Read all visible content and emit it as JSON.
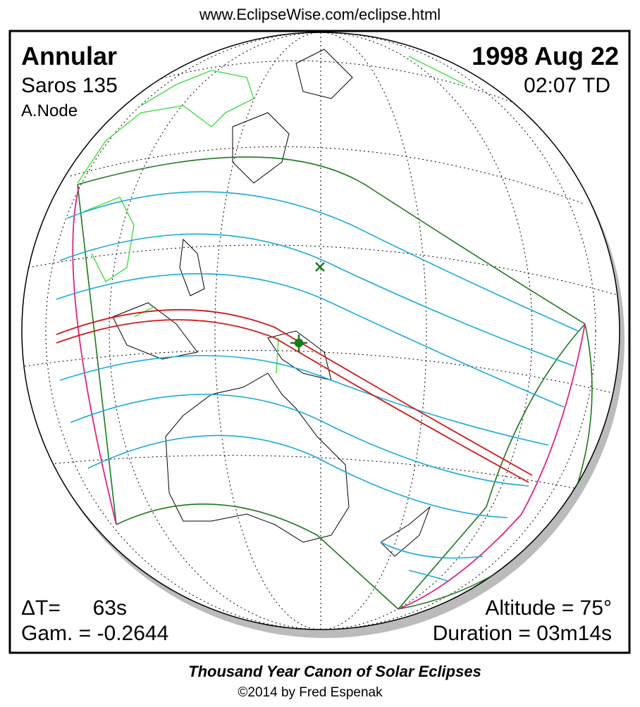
{
  "header": {
    "url": "www.EclipseWise.com/eclipse.html"
  },
  "panel": {
    "type": "Annular",
    "saros": "Saros 135",
    "node": "A.Node",
    "date": "1998 Aug 22",
    "time": "02:07 TD",
    "delta_t_label": "ΔT=",
    "delta_t_value": "63s",
    "gamma": "Gam. = -0.2644",
    "altitude": "Altitude = 75°",
    "duration": "Duration = 03m14s"
  },
  "footer": {
    "title": "Thousand Year Canon of Solar Eclipses",
    "credit": "©2014 by Fred Espenak"
  }
}
